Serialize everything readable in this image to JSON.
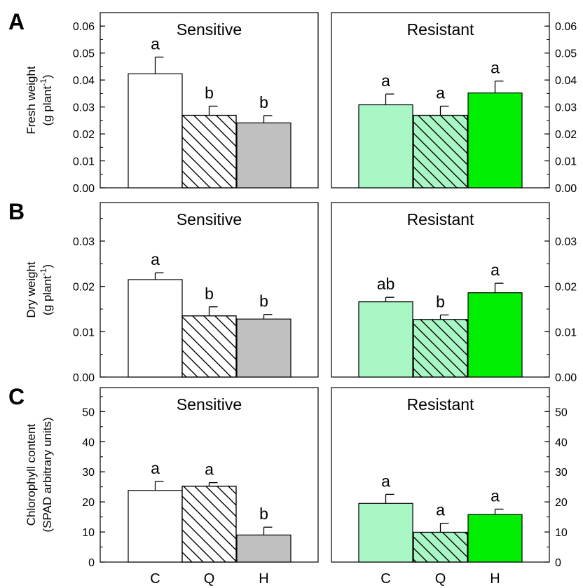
{
  "figure": {
    "categories": [
      "C",
      "Q",
      "H"
    ],
    "colors": {
      "sensitive": [
        "#ffffff",
        "#ffffff",
        "#c0c0c0"
      ],
      "resistant": [
        "#aaf7c6",
        "#aaf7c6",
        "#00ee00"
      ],
      "hatch_line": "#000000",
      "axis": "#000000"
    },
    "patterns": [
      "solid",
      "hatched",
      "solid"
    ]
  },
  "chart_data": [
    {
      "panel_label": "A",
      "type": "bar",
      "ylabel": "Fresh weight",
      "ylabel_line2": "(g plant",
      "ylabel_sup": "-1",
      "ylabel_tail": ")",
      "ylim": [
        0,
        0.065
      ],
      "ticks": [
        "0.00",
        "0.01",
        "0.02",
        "0.03",
        "0.04",
        "0.05",
        "0.06"
      ],
      "tick_values": [
        0,
        0.01,
        0.02,
        0.03,
        0.04,
        0.05,
        0.06
      ],
      "minor_step": 0.005,
      "groups": [
        {
          "title": "Sensitive",
          "categories": [
            "C",
            "Q",
            "H"
          ],
          "values": [
            0.0423,
            0.0269,
            0.0241
          ],
          "errors": [
            0.0062,
            0.0034,
            0.0027
          ],
          "letters": [
            "a",
            "b",
            "b"
          ]
        },
        {
          "title": "Resistant",
          "categories": [
            "C",
            "Q",
            "H"
          ],
          "values": [
            0.0308,
            0.0269,
            0.0352
          ],
          "errors": [
            0.004,
            0.0034,
            0.0044
          ],
          "letters": [
            "a",
            "a",
            "a"
          ]
        }
      ]
    },
    {
      "panel_label": "B",
      "type": "bar",
      "ylabel": "Dry weight",
      "ylabel_line2": "(g plant",
      "ylabel_sup": "-1",
      "ylabel_tail": ")",
      "ylim": [
        0,
        0.0385
      ],
      "ticks": [
        "0.00",
        "0.01",
        "0.02",
        "0.03"
      ],
      "tick_values": [
        0,
        0.01,
        0.02,
        0.03
      ],
      "minor_step": 0.005,
      "groups": [
        {
          "title": "Sensitive",
          "categories": [
            "C",
            "Q",
            "H"
          ],
          "values": [
            0.0215,
            0.0135,
            0.0128
          ],
          "errors": [
            0.0015,
            0.002,
            0.001
          ],
          "letters": [
            "a",
            "b",
            "b"
          ]
        },
        {
          "title": "Resistant",
          "categories": [
            "C",
            "Q",
            "H"
          ],
          "values": [
            0.0166,
            0.0127,
            0.0186
          ],
          "errors": [
            0.001,
            0.001,
            0.0021
          ],
          "letters": [
            "ab",
            "b",
            "a"
          ]
        }
      ]
    },
    {
      "panel_label": "C",
      "type": "bar",
      "ylabel": "Chlorophyll content",
      "ylabel_line2": "(SPAD arbitrary units)",
      "ylabel_sup": "",
      "ylabel_tail": "",
      "ylim": [
        0,
        58
      ],
      "ticks": [
        "0",
        "10",
        "20",
        "30",
        "40",
        "50"
      ],
      "tick_values": [
        0,
        10,
        20,
        30,
        40,
        50
      ],
      "minor_step": 5,
      "groups": [
        {
          "title": "Sensitive",
          "categories": [
            "C",
            "Q",
            "H"
          ],
          "values": [
            23.8,
            25.2,
            9.0
          ],
          "errors": [
            3.0,
            1.2,
            2.6
          ],
          "letters": [
            "a",
            "a",
            "b"
          ]
        },
        {
          "title": "Resistant",
          "categories": [
            "C",
            "Q",
            "H"
          ],
          "values": [
            19.5,
            9.9,
            15.8
          ],
          "errors": [
            3.0,
            3.0,
            1.8
          ],
          "letters": [
            "a",
            "a",
            "a"
          ]
        }
      ]
    }
  ]
}
